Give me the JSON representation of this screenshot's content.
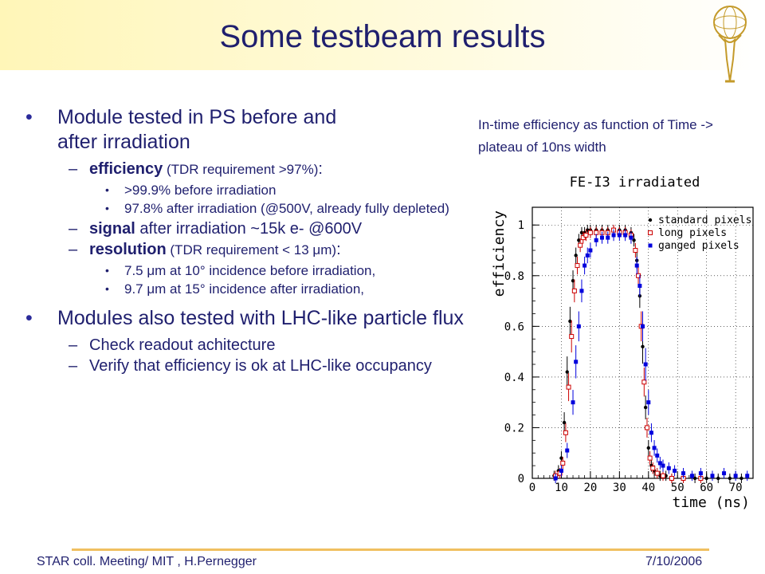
{
  "slide": {
    "title": "Some testbeam results",
    "bullets": [
      {
        "text1": "Module tested in PS before and",
        "text2": "after irradiation"
      },
      {
        "text": "Modules also tested with LHC-like particle flux"
      }
    ],
    "efficiency": {
      "bold": "efficiency",
      "normal": " (TDR requirement >97%)",
      "tail": ":"
    },
    "eff_items": [
      ">99.9% before irradiation",
      "97.8%  after irradiation  (@500V, already fully depleted)"
    ],
    "signal": {
      "bold": "signal",
      "normal": " after irradiation ~15k e- @600V"
    },
    "resolution": {
      "bold": "resolution",
      "normal": " (TDR requirement  < 13 μm)",
      "tail": ":"
    },
    "res_items": [
      "7.5 μm at 10° incidence before irradiation,",
      "9.7 μm at 15° incidence after irradiation,"
    ],
    "flux_items": [
      "Check readout achitecture",
      "Verify that efficiency is ok at LHC-like occupancy"
    ],
    "caption": "In-time efficiency as function of Time -> plateau of 10ns width",
    "footer_left": "STAR coll. Meeting/ MIT , H.Pernegger",
    "footer_right": "7/10/2006"
  },
  "chart_data": {
    "type": "scatter",
    "title": "FE-I3 irradiated",
    "xlabel": "time (ns)",
    "ylabel": "efficiency",
    "xlim": [
      0,
      76
    ],
    "ylim": [
      0,
      1.07
    ],
    "xticks": [
      0,
      10,
      20,
      30,
      40,
      50,
      60,
      70
    ],
    "yticks": [
      0,
      0.2,
      0.4,
      0.6,
      0.8,
      1
    ],
    "grid": true,
    "legend_position": "top-right",
    "series": [
      {
        "name": "standard pixels",
        "marker": "dot",
        "color": "#000000",
        "points": [
          [
            7.5,
            0.01
          ],
          [
            9,
            0.03
          ],
          [
            10,
            0.08
          ],
          [
            11,
            0.22
          ],
          [
            12,
            0.42
          ],
          [
            13,
            0.62
          ],
          [
            14,
            0.78
          ],
          [
            15,
            0.88
          ],
          [
            16,
            0.94
          ],
          [
            17,
            0.97
          ],
          [
            18,
            0.97
          ],
          [
            19,
            0.98
          ],
          [
            20,
            0.98
          ],
          [
            22,
            0.98
          ],
          [
            24,
            0.98
          ],
          [
            26,
            0.98
          ],
          [
            28,
            0.98
          ],
          [
            30,
            0.98
          ],
          [
            32,
            0.98
          ],
          [
            34,
            0.97
          ],
          [
            35,
            0.94
          ],
          [
            36,
            0.86
          ],
          [
            37,
            0.72
          ],
          [
            38,
            0.52
          ],
          [
            39,
            0.28
          ],
          [
            40,
            0.12
          ],
          [
            41,
            0.05
          ],
          [
            42,
            0.03
          ],
          [
            44,
            0.01
          ],
          [
            46,
            0.01
          ],
          [
            48,
            0.0
          ],
          [
            52,
            0.0
          ],
          [
            56,
            0.0
          ],
          [
            60,
            0.0
          ],
          [
            64,
            0.0
          ],
          [
            68,
            0.0
          ],
          [
            72,
            0.0
          ]
        ]
      },
      {
        "name": "long pixels",
        "marker": "open-square",
        "color": "#cc0000",
        "points": [
          [
            8,
            0.01
          ],
          [
            9.5,
            0.02
          ],
          [
            10.5,
            0.06
          ],
          [
            11.5,
            0.18
          ],
          [
            12.5,
            0.36
          ],
          [
            13.5,
            0.56
          ],
          [
            14.5,
            0.74
          ],
          [
            15.5,
            0.84
          ],
          [
            16.5,
            0.92
          ],
          [
            17.5,
            0.95
          ],
          [
            18.5,
            0.96
          ],
          [
            20,
            0.97
          ],
          [
            22,
            0.97
          ],
          [
            24,
            0.97
          ],
          [
            26,
            0.97
          ],
          [
            28,
            0.98
          ],
          [
            30,
            0.97
          ],
          [
            32,
            0.97
          ],
          [
            34,
            0.96
          ],
          [
            35.5,
            0.9
          ],
          [
            36.5,
            0.8
          ],
          [
            37.5,
            0.6
          ],
          [
            38.5,
            0.38
          ],
          [
            39.5,
            0.2
          ],
          [
            40.5,
            0.08
          ],
          [
            41.5,
            0.04
          ],
          [
            43,
            0.02
          ],
          [
            45,
            0.01
          ],
          [
            48,
            0.0
          ],
          [
            52,
            0.0
          ],
          [
            58,
            0.0
          ]
        ]
      },
      {
        "name": "ganged pixels",
        "marker": "square",
        "color": "#0000dd",
        "points": [
          [
            8,
            0.0
          ],
          [
            10,
            0.03
          ],
          [
            12,
            0.11
          ],
          [
            14,
            0.3
          ],
          [
            15,
            0.46
          ],
          [
            16,
            0.6
          ],
          [
            17,
            0.74
          ],
          [
            18,
            0.84
          ],
          [
            19,
            0.88
          ],
          [
            20,
            0.9
          ],
          [
            22,
            0.94
          ],
          [
            24,
            0.95
          ],
          [
            26,
            0.95
          ],
          [
            28,
            0.96
          ],
          [
            30,
            0.96
          ],
          [
            32,
            0.96
          ],
          [
            34,
            0.95
          ],
          [
            36,
            0.84
          ],
          [
            37,
            0.76
          ],
          [
            38,
            0.6
          ],
          [
            39,
            0.45
          ],
          [
            40,
            0.3
          ],
          [
            41,
            0.18
          ],
          [
            42,
            0.12
          ],
          [
            43,
            0.09
          ],
          [
            44,
            0.06
          ],
          [
            45,
            0.05
          ],
          [
            47,
            0.04
          ],
          [
            49,
            0.03
          ],
          [
            52,
            0.02
          ],
          [
            55,
            0.01
          ],
          [
            58,
            0.02
          ],
          [
            62,
            0.01
          ],
          [
            66,
            0.02
          ],
          [
            70,
            0.01
          ],
          [
            74,
            0.01
          ]
        ]
      }
    ]
  }
}
